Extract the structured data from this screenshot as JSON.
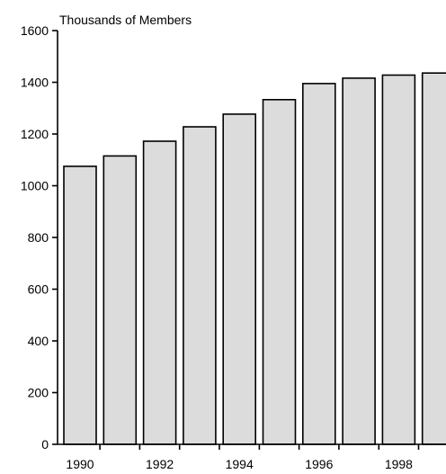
{
  "chart_data": {
    "type": "bar",
    "ylabel": "Thousands of Members",
    "ylim": [
      0,
      1600
    ],
    "yticks": [
      "0",
      "200",
      "400",
      "600",
      "800",
      "1000",
      "1200",
      "1400",
      "1600"
    ],
    "xtick_labels": [
      "1990",
      "1992",
      "1994",
      "1996",
      "1998"
    ],
    "categories": [
      "1990",
      "1991",
      "1992",
      "1993",
      "1994",
      "1995",
      "1996",
      "1997",
      "1998",
      "1999"
    ],
    "values": [
      1075,
      1115,
      1172,
      1228,
      1277,
      1333,
      1395,
      1416,
      1428,
      1436
    ],
    "bar_fill": "#dcdcdc",
    "bar_stroke": "#000000",
    "grid": false
  }
}
